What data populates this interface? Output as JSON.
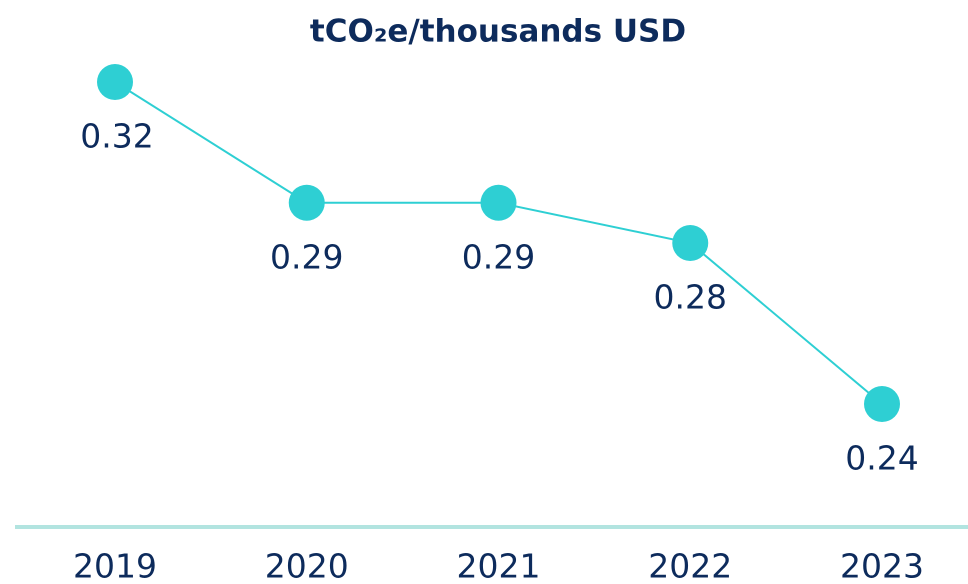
{
  "chart_data": {
    "type": "line",
    "title": "tCO₂e/thousands USD",
    "categories": [
      "2019",
      "2020",
      "2021",
      "2022",
      "2023"
    ],
    "values": [
      0.32,
      0.29,
      0.29,
      0.28,
      0.24
    ],
    "color": "#2ecfd3"
  }
}
